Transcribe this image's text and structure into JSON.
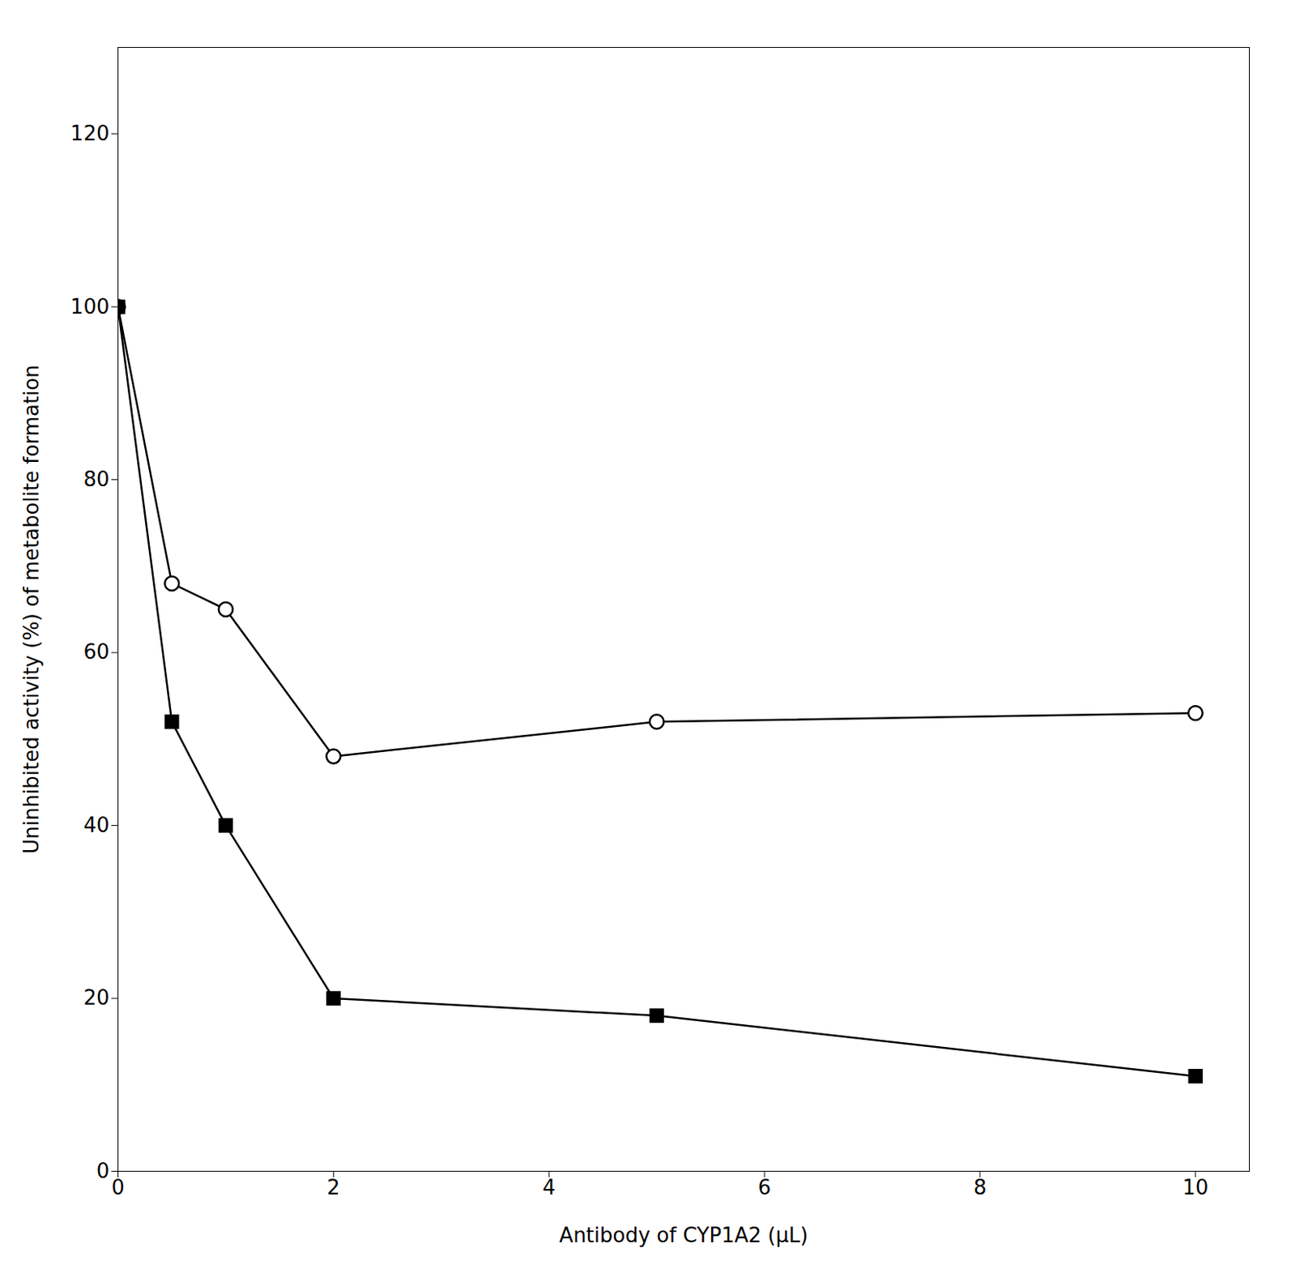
{
  "chart_data": {
    "type": "line",
    "xlabel": "Antibody of CYP1A2 (μL)",
    "ylabel": "Uninhibited activity (%) of metabolite formation",
    "x": [
      0,
      0.5,
      1,
      2,
      5,
      10
    ],
    "series": [
      {
        "color": "#000000",
        "marker": "circle",
        "values": [
          100,
          68,
          65,
          48,
          52,
          53
        ]
      },
      {
        "color": "#000000",
        "marker": "square",
        "values": [
          100,
          52,
          40,
          20,
          18,
          11
        ]
      }
    ],
    "xlim": [
      0,
      10.5
    ],
    "xticks": [
      0,
      2,
      4,
      6,
      8,
      10
    ],
    "ylim": [
      0,
      130
    ],
    "yticks": [
      0,
      20,
      40,
      60,
      80,
      100,
      120
    ],
    "grid": false
  }
}
